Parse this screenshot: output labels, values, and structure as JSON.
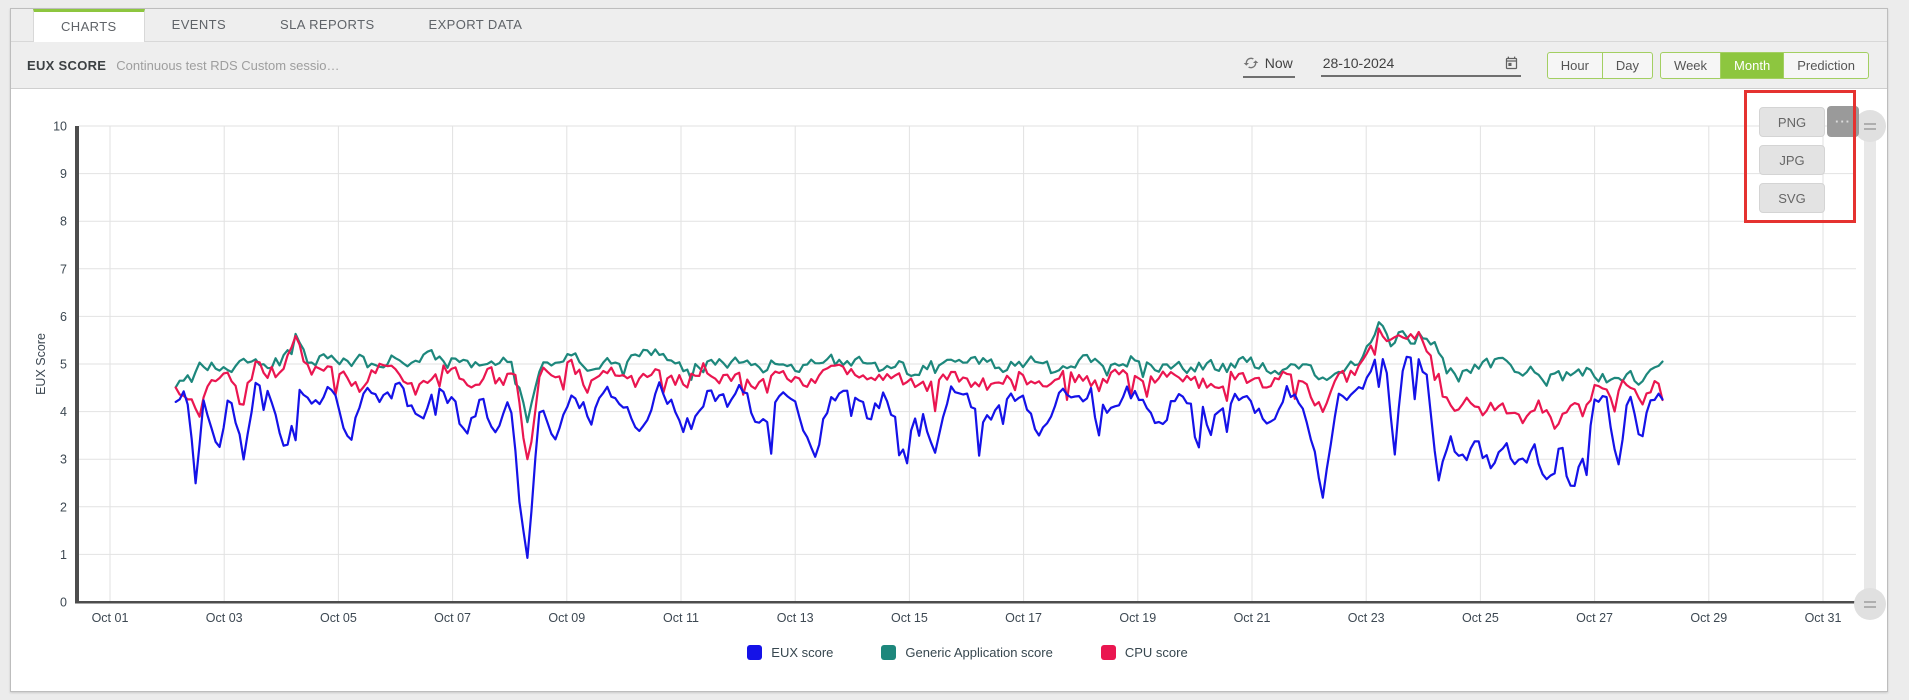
{
  "colors": {
    "accent_green": "#8dc63f",
    "axis": "#4d4d4d",
    "grid": "#e2e2e2"
  },
  "tabs": [
    {
      "label": "CHARTS",
      "active": true
    },
    {
      "label": "EVENTS",
      "active": false
    },
    {
      "label": "SLA REPORTS",
      "active": false
    },
    {
      "label": "EXPORT DATA",
      "active": false
    }
  ],
  "toolbar": {
    "title": "EUX SCORE",
    "subtitle": "Continuous test RDS Custom sessio…",
    "now_label": "Now",
    "date_value": "28-10-2024",
    "range_buttons": [
      {
        "label": "Hour",
        "active": false
      },
      {
        "label": "Day",
        "active": false
      },
      {
        "label": "Week",
        "active": false
      },
      {
        "label": "Month",
        "active": true
      },
      {
        "label": "Prediction",
        "active": false
      }
    ]
  },
  "export_menu": {
    "items": [
      "PNG",
      "JPG",
      "SVG"
    ],
    "more_label": "···"
  },
  "annotation": {
    "color": "#e53230"
  },
  "chart_data": {
    "type": "line",
    "title": "",
    "xlabel": "",
    "ylabel": "EUX Score",
    "ylim": [
      0,
      10
    ],
    "y_ticks": [
      0,
      1,
      2,
      3,
      4,
      5,
      6,
      7,
      8,
      9,
      10
    ],
    "x_ticks": [
      "Oct 01",
      "Oct 03",
      "Oct 05",
      "Oct 07",
      "Oct 09",
      "Oct 11",
      "Oct 13",
      "Oct 15",
      "Oct 17",
      "Oct 19",
      "Oct 21",
      "Oct 23",
      "Oct 25",
      "Oct 27",
      "Oct 29",
      "Oct 31"
    ],
    "x_tick_days": [
      1,
      3,
      5,
      7,
      9,
      11,
      13,
      15,
      17,
      19,
      21,
      23,
      25,
      27,
      29,
      31
    ],
    "x_range_days": [
      1,
      31
    ],
    "data_span_days": [
      2.15,
      28.2
    ],
    "grid": true,
    "legend_position": "bottom",
    "series": [
      {
        "name": "EUX score",
        "color": "#1512e8",
        "noise": {
          "seed": 11,
          "amp": 0.15,
          "spike_prob": 0.05,
          "spike_depth": 0.9
        },
        "keypoints": [
          [
            2.2,
            4.2
          ],
          [
            2.35,
            4.4
          ],
          [
            2.5,
            2.5
          ],
          [
            2.65,
            4.3
          ],
          [
            2.9,
            3.1
          ],
          [
            3.1,
            4.4
          ],
          [
            3.35,
            3.0
          ],
          [
            3.55,
            4.5
          ],
          [
            3.8,
            4.3
          ],
          [
            4.1,
            3.2
          ],
          [
            4.3,
            4.5
          ],
          [
            4.6,
            4.2
          ],
          [
            4.9,
            4.5
          ],
          [
            5.2,
            3.4
          ],
          [
            5.45,
            4.4
          ],
          [
            5.8,
            4.3
          ],
          [
            6.1,
            4.5
          ],
          [
            6.4,
            3.8
          ],
          [
            6.7,
            4.4
          ],
          [
            7.0,
            4.3
          ],
          [
            7.25,
            3.4
          ],
          [
            7.5,
            4.4
          ],
          [
            7.75,
            3.5
          ],
          [
            8.0,
            4.4
          ],
          [
            8.3,
            0.9
          ],
          [
            8.55,
            4.3
          ],
          [
            8.8,
            3.3
          ],
          [
            9.1,
            4.5
          ],
          [
            9.4,
            3.8
          ],
          [
            9.7,
            4.4
          ],
          [
            10.0,
            4.2
          ],
          [
            10.3,
            3.6
          ],
          [
            10.6,
            4.5
          ],
          [
            10.9,
            4.0
          ],
          [
            11.2,
            3.7
          ],
          [
            11.5,
            4.4
          ],
          [
            11.8,
            4.2
          ],
          [
            12.1,
            4.5
          ],
          [
            12.4,
            3.6
          ],
          [
            12.7,
            4.4
          ],
          [
            13.0,
            4.2
          ],
          [
            13.35,
            3.0
          ],
          [
            13.6,
            4.3
          ],
          [
            13.9,
            4.5
          ],
          [
            14.3,
            3.9
          ],
          [
            14.6,
            4.4
          ],
          [
            14.95,
            3.0
          ],
          [
            15.15,
            4.2
          ],
          [
            15.45,
            3.1
          ],
          [
            15.7,
            4.4
          ],
          [
            16.0,
            4.3
          ],
          [
            16.35,
            3.8
          ],
          [
            16.7,
            4.4
          ],
          [
            17.0,
            4.2
          ],
          [
            17.3,
            3.5
          ],
          [
            17.6,
            4.4
          ],
          [
            17.9,
            4.2
          ],
          [
            18.2,
            4.4
          ],
          [
            18.5,
            3.9
          ],
          [
            18.8,
            4.4
          ],
          [
            19.1,
            4.2
          ],
          [
            19.4,
            3.7
          ],
          [
            19.7,
            4.4
          ],
          [
            20.0,
            4.2
          ],
          [
            20.35,
            3.8
          ],
          [
            20.7,
            4.4
          ],
          [
            21.0,
            4.2
          ],
          [
            21.3,
            3.7
          ],
          [
            21.6,
            4.4
          ],
          [
            21.9,
            4.2
          ],
          [
            22.25,
            2.2
          ],
          [
            22.5,
            4.3
          ],
          [
            22.8,
            4.4
          ],
          [
            23.05,
            4.8
          ],
          [
            23.2,
            5.2
          ],
          [
            23.35,
            4.9
          ],
          [
            23.5,
            3.2
          ],
          [
            23.65,
            5.1
          ],
          [
            23.85,
            5.0
          ],
          [
            24.05,
            4.9
          ],
          [
            24.25,
            2.6
          ],
          [
            24.45,
            3.4
          ],
          [
            24.7,
            3.0
          ],
          [
            24.95,
            3.3
          ],
          [
            25.2,
            2.9
          ],
          [
            25.45,
            3.3
          ],
          [
            25.7,
            2.8
          ],
          [
            25.95,
            3.2
          ],
          [
            26.2,
            2.4
          ],
          [
            26.4,
            3.3
          ],
          [
            26.6,
            2.3
          ],
          [
            26.8,
            3.1
          ],
          [
            27.0,
            4.2
          ],
          [
            27.2,
            4.3
          ],
          [
            27.4,
            2.9
          ],
          [
            27.6,
            4.3
          ],
          [
            27.8,
            3.4
          ],
          [
            28.0,
            4.4
          ],
          [
            28.2,
            4.3
          ]
        ]
      },
      {
        "name": "Generic Application score",
        "color": "#1d877c",
        "noise": {
          "seed": 23,
          "amp": 0.11,
          "spike_prob": 0.02,
          "spike_depth": 0.35
        },
        "keypoints": [
          [
            2.2,
            4.6
          ],
          [
            2.5,
            4.9
          ],
          [
            2.8,
            5.0
          ],
          [
            3.1,
            4.8
          ],
          [
            3.4,
            5.1
          ],
          [
            3.7,
            4.9
          ],
          [
            4.0,
            5.1
          ],
          [
            4.25,
            5.6
          ],
          [
            4.5,
            5.0
          ],
          [
            4.8,
            5.2
          ],
          [
            5.1,
            5.0
          ],
          [
            5.4,
            5.1
          ],
          [
            5.7,
            4.9
          ],
          [
            6.0,
            5.2
          ],
          [
            6.3,
            5.0
          ],
          [
            6.6,
            5.3
          ],
          [
            6.9,
            5.0
          ],
          [
            7.2,
            5.1
          ],
          [
            7.5,
            4.9
          ],
          [
            7.8,
            5.1
          ],
          [
            8.05,
            5.0
          ],
          [
            8.3,
            3.8
          ],
          [
            8.55,
            5.1
          ],
          [
            8.8,
            5.0
          ],
          [
            9.1,
            5.2
          ],
          [
            9.4,
            4.9
          ],
          [
            9.7,
            5.1
          ],
          [
            10.0,
            5.0
          ],
          [
            10.3,
            5.2
          ],
          [
            10.6,
            5.3
          ],
          [
            10.9,
            5.0
          ],
          [
            11.2,
            4.9
          ],
          [
            11.5,
            5.1
          ],
          [
            11.8,
            5.0
          ],
          [
            12.1,
            5.1
          ],
          [
            12.4,
            4.9
          ],
          [
            12.7,
            5.1
          ],
          [
            13.0,
            4.9
          ],
          [
            13.3,
            5.0
          ],
          [
            13.6,
            5.1
          ],
          [
            13.9,
            5.0
          ],
          [
            14.2,
            5.1
          ],
          [
            14.5,
            4.9
          ],
          [
            14.8,
            5.0
          ],
          [
            15.1,
            4.8
          ],
          [
            15.4,
            5.0
          ],
          [
            15.7,
            5.1
          ],
          [
            16.0,
            5.0
          ],
          [
            16.3,
            5.1
          ],
          [
            16.6,
            4.9
          ],
          [
            16.9,
            5.0
          ],
          [
            17.2,
            5.1
          ],
          [
            17.5,
            4.9
          ],
          [
            17.8,
            5.0
          ],
          [
            18.1,
            5.1
          ],
          [
            18.4,
            4.9
          ],
          [
            18.7,
            5.0
          ],
          [
            19.0,
            5.1
          ],
          [
            19.3,
            4.9
          ],
          [
            19.6,
            5.0
          ],
          [
            19.9,
            4.9
          ],
          [
            20.2,
            5.0
          ],
          [
            20.5,
            4.9
          ],
          [
            20.8,
            5.1
          ],
          [
            21.1,
            5.0
          ],
          [
            21.4,
            4.8
          ],
          [
            21.7,
            5.0
          ],
          [
            22.0,
            4.9
          ],
          [
            22.3,
            4.7
          ],
          [
            22.6,
            4.9
          ],
          [
            22.9,
            5.0
          ],
          [
            23.1,
            5.5
          ],
          [
            23.25,
            5.9
          ],
          [
            23.4,
            5.4
          ],
          [
            23.6,
            5.6
          ],
          [
            23.8,
            5.5
          ],
          [
            24.0,
            5.6
          ],
          [
            24.2,
            5.4
          ],
          [
            24.4,
            4.9
          ],
          [
            24.6,
            4.7
          ],
          [
            24.85,
            4.9
          ],
          [
            25.1,
            5.0
          ],
          [
            25.35,
            5.1
          ],
          [
            25.6,
            4.8
          ],
          [
            25.85,
            4.9
          ],
          [
            26.1,
            4.6
          ],
          [
            26.35,
            4.8
          ],
          [
            26.6,
            4.7
          ],
          [
            26.85,
            4.9
          ],
          [
            27.1,
            4.7
          ],
          [
            27.35,
            4.6
          ],
          [
            27.6,
            4.8
          ],
          [
            27.85,
            4.6
          ],
          [
            28.05,
            4.9
          ],
          [
            28.2,
            5.1
          ]
        ]
      },
      {
        "name": "CPU score",
        "color": "#ea1650",
        "noise": {
          "seed": 37,
          "amp": 0.13,
          "spike_prob": 0.03,
          "spike_depth": 0.6
        },
        "keypoints": [
          [
            2.2,
            4.5
          ],
          [
            2.4,
            4.3
          ],
          [
            2.55,
            3.9
          ],
          [
            2.8,
            4.7
          ],
          [
            3.05,
            4.9
          ],
          [
            3.3,
            4.1
          ],
          [
            3.55,
            5.0
          ],
          [
            3.8,
            4.8
          ],
          [
            4.05,
            4.9
          ],
          [
            4.25,
            5.6
          ],
          [
            4.5,
            4.8
          ],
          [
            4.8,
            5.0
          ],
          [
            5.1,
            4.9
          ],
          [
            5.35,
            4.4
          ],
          [
            5.6,
            4.9
          ],
          [
            5.9,
            5.0
          ],
          [
            6.2,
            4.7
          ],
          [
            6.5,
            4.6
          ],
          [
            6.8,
            4.9
          ],
          [
            7.1,
            4.8
          ],
          [
            7.35,
            4.4
          ],
          [
            7.6,
            4.9
          ],
          [
            7.85,
            4.6
          ],
          [
            8.1,
            4.8
          ],
          [
            8.3,
            2.8
          ],
          [
            8.55,
            4.9
          ],
          [
            8.8,
            4.7
          ],
          [
            9.1,
            5.0
          ],
          [
            9.35,
            4.5
          ],
          [
            9.6,
            4.9
          ],
          [
            9.9,
            4.8
          ],
          [
            10.2,
            4.6
          ],
          [
            10.5,
            4.9
          ],
          [
            10.8,
            4.7
          ],
          [
            11.1,
            4.6
          ],
          [
            11.4,
            4.9
          ],
          [
            11.7,
            4.7
          ],
          [
            12.0,
            4.8
          ],
          [
            12.3,
            4.5
          ],
          [
            12.6,
            4.9
          ],
          [
            12.9,
            4.7
          ],
          [
            13.2,
            4.6
          ],
          [
            13.5,
            4.8
          ],
          [
            13.8,
            4.9
          ],
          [
            14.1,
            4.7
          ],
          [
            14.4,
            4.6
          ],
          [
            14.7,
            4.8
          ],
          [
            15.0,
            4.6
          ],
          [
            15.3,
            4.5
          ],
          [
            15.6,
            4.8
          ],
          [
            15.9,
            4.7
          ],
          [
            16.2,
            4.6
          ],
          [
            16.5,
            4.5
          ],
          [
            16.8,
            4.8
          ],
          [
            17.1,
            4.6
          ],
          [
            17.4,
            4.5
          ],
          [
            17.7,
            4.8
          ],
          [
            18.0,
            4.7
          ],
          [
            18.3,
            4.5
          ],
          [
            18.6,
            4.8
          ],
          [
            18.9,
            4.7
          ],
          [
            19.2,
            4.6
          ],
          [
            19.5,
            4.8
          ],
          [
            19.8,
            4.7
          ],
          [
            20.1,
            4.6
          ],
          [
            20.4,
            4.5
          ],
          [
            20.7,
            4.8
          ],
          [
            21.0,
            4.7
          ],
          [
            21.3,
            4.6
          ],
          [
            21.6,
            4.8
          ],
          [
            21.9,
            4.6
          ],
          [
            22.25,
            4.0
          ],
          [
            22.5,
            4.7
          ],
          [
            22.8,
            4.8
          ],
          [
            23.05,
            5.2
          ],
          [
            23.2,
            5.8
          ],
          [
            23.35,
            5.5
          ],
          [
            23.55,
            5.7
          ],
          [
            23.75,
            5.5
          ],
          [
            23.95,
            5.6
          ],
          [
            24.15,
            5.2
          ],
          [
            24.35,
            4.4
          ],
          [
            24.55,
            4.1
          ],
          [
            24.8,
            4.2
          ],
          [
            25.05,
            3.9
          ],
          [
            25.3,
            4.2
          ],
          [
            25.55,
            4.0
          ],
          [
            25.8,
            3.8
          ],
          [
            26.05,
            4.2
          ],
          [
            26.3,
            3.6
          ],
          [
            26.55,
            4.1
          ],
          [
            26.8,
            4.0
          ],
          [
            27.05,
            4.6
          ],
          [
            27.3,
            4.4
          ],
          [
            27.55,
            4.7
          ],
          [
            27.8,
            4.1
          ],
          [
            28.05,
            4.6
          ],
          [
            28.2,
            4.4
          ]
        ]
      }
    ]
  }
}
